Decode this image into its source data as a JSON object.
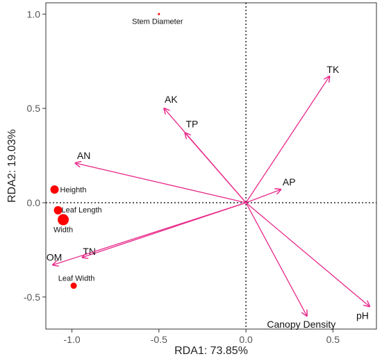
{
  "chart_data": {
    "type": "scatter",
    "subtype": "rda-biplot",
    "title": "",
    "xlabel": "RDA1: 73.85%",
    "ylabel": "RDA2: 19.03%",
    "xlim": [
      -1.15,
      0.75
    ],
    "ylim": [
      -0.67,
      1.06
    ],
    "xticks": [
      -1.0,
      -0.5,
      0.0,
      0.5
    ],
    "xtick_labels": [
      "-1.0",
      "-0.5",
      "0.0",
      "0.5"
    ],
    "yticks": [
      -0.5,
      0.0,
      0.5,
      1.0
    ],
    "ytick_labels": [
      "-0.5",
      "0.0",
      "0.5",
      "1.0"
    ],
    "reference_lines": {
      "x": 0,
      "y": 0,
      "style": "dotted"
    },
    "grid": false,
    "arrow_color": "#e8288a",
    "point_color": "#ff0000",
    "vectors": [
      {
        "name": "TK",
        "x": 0.48,
        "y": 0.67
      },
      {
        "name": "AK",
        "x": -0.47,
        "y": 0.5
      },
      {
        "name": "TP",
        "x": -0.35,
        "y": 0.37
      },
      {
        "name": "AN",
        "x": -0.98,
        "y": 0.21
      },
      {
        "name": "AP",
        "x": 0.2,
        "y": 0.07
      },
      {
        "name": "TN",
        "x": -0.94,
        "y": -0.29
      },
      {
        "name": "OM",
        "x": -1.11,
        "y": -0.33
      },
      {
        "name": "Canopy Density",
        "x": 0.35,
        "y": -0.6
      },
      {
        "name": "pH",
        "x": 0.71,
        "y": -0.55
      }
    ],
    "points": [
      {
        "name": "Stem Diameter",
        "x": -0.5,
        "y": 1.0,
        "size": 1.5
      },
      {
        "name": "Heighth",
        "x": -1.1,
        "y": 0.07,
        "size": 6
      },
      {
        "name": "Leaf Length",
        "x": -1.08,
        "y": -0.04,
        "size": 6
      },
      {
        "name": "Width",
        "x": -1.05,
        "y": -0.09,
        "size": 8
      },
      {
        "name": "Leaf Width",
        "x": -0.99,
        "y": -0.44,
        "size": 4.5
      }
    ]
  }
}
